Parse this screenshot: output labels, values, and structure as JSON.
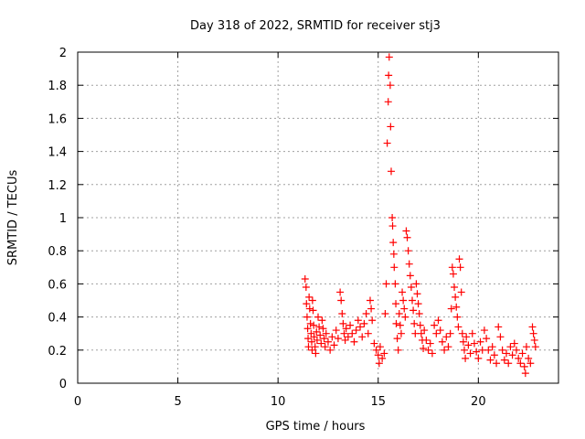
{
  "chart_data": {
    "type": "scatter",
    "title": "Day 318 of 2022, SRMTID for receiver stj3",
    "xlabel": "GPS time / hours",
    "ylabel": "SRMTID / TECUs",
    "xlim": [
      0,
      24
    ],
    "ylim": [
      0,
      2
    ],
    "xticks": [
      0,
      5,
      10,
      15,
      20
    ],
    "yticks": [
      0,
      0.2,
      0.4,
      0.6,
      0.8,
      1,
      1.2,
      1.4,
      1.6,
      1.8,
      2
    ],
    "ytick_labels": [
      "0",
      "0.2",
      "0.4",
      "0.6",
      "0.8",
      "1",
      "1.2",
      "1.4",
      "1.6",
      "1.8",
      "2"
    ],
    "grid": true,
    "marker": "plus",
    "series_color": "#ff0000",
    "series": [
      {
        "points": [
          [
            11.35,
            0.63
          ],
          [
            11.4,
            0.58
          ],
          [
            11.42,
            0.48
          ],
          [
            11.45,
            0.4
          ],
          [
            11.48,
            0.33
          ],
          [
            11.5,
            0.27
          ],
          [
            11.52,
            0.22
          ],
          [
            11.55,
            0.52
          ],
          [
            11.58,
            0.45
          ],
          [
            11.62,
            0.36
          ],
          [
            11.65,
            0.3
          ],
          [
            11.68,
            0.25
          ],
          [
            11.7,
            0.2
          ],
          [
            11.72,
            0.5
          ],
          [
            11.75,
            0.44
          ],
          [
            11.78,
            0.35
          ],
          [
            11.8,
            0.28
          ],
          [
            11.85,
            0.22
          ],
          [
            11.88,
            0.18
          ],
          [
            11.92,
            0.31
          ],
          [
            11.95,
            0.26
          ],
          [
            12.0,
            0.4
          ],
          [
            12.05,
            0.34
          ],
          [
            12.1,
            0.29
          ],
          [
            12.15,
            0.24
          ],
          [
            12.2,
            0.38
          ],
          [
            12.25,
            0.33
          ],
          [
            12.3,
            0.27
          ],
          [
            12.35,
            0.22
          ],
          [
            12.4,
            0.3
          ],
          [
            12.5,
            0.25
          ],
          [
            12.6,
            0.2
          ],
          [
            12.7,
            0.28
          ],
          [
            12.8,
            0.23
          ],
          [
            12.9,
            0.32
          ],
          [
            13.0,
            0.27
          ],
          [
            13.1,
            0.55
          ],
          [
            13.15,
            0.5
          ],
          [
            13.2,
            0.42
          ],
          [
            13.25,
            0.36
          ],
          [
            13.3,
            0.3
          ],
          [
            13.35,
            0.26
          ],
          [
            13.4,
            0.33
          ],
          [
            13.5,
            0.28
          ],
          [
            13.6,
            0.35
          ],
          [
            13.7,
            0.3
          ],
          [
            13.8,
            0.25
          ],
          [
            13.9,
            0.32
          ],
          [
            14.0,
            0.38
          ],
          [
            14.1,
            0.34
          ],
          [
            14.2,
            0.28
          ],
          [
            14.3,
            0.36
          ],
          [
            14.4,
            0.42
          ],
          [
            14.5,
            0.3
          ],
          [
            14.6,
            0.5
          ],
          [
            14.65,
            0.45
          ],
          [
            14.7,
            0.38
          ],
          [
            14.8,
            0.24
          ],
          [
            14.9,
            0.2
          ],
          [
            15.0,
            0.17
          ],
          [
            15.05,
            0.12
          ],
          [
            15.1,
            0.22
          ],
          [
            15.2,
            0.15
          ],
          [
            15.3,
            0.18
          ],
          [
            15.35,
            0.42
          ],
          [
            15.4,
            0.6
          ],
          [
            15.45,
            1.45
          ],
          [
            15.5,
            1.7
          ],
          [
            15.52,
            1.86
          ],
          [
            15.55,
            1.97
          ],
          [
            15.6,
            1.8
          ],
          [
            15.62,
            1.55
          ],
          [
            15.65,
            1.28
          ],
          [
            15.7,
            1.0
          ],
          [
            15.72,
            0.95
          ],
          [
            15.75,
            0.85
          ],
          [
            15.78,
            0.78
          ],
          [
            15.8,
            0.7
          ],
          [
            15.85,
            0.6
          ],
          [
            15.88,
            0.48
          ],
          [
            15.9,
            0.36
          ],
          [
            15.95,
            0.27
          ],
          [
            16.0,
            0.2
          ],
          [
            16.05,
            0.42
          ],
          [
            16.1,
            0.35
          ],
          [
            16.15,
            0.3
          ],
          [
            16.2,
            0.55
          ],
          [
            16.25,
            0.5
          ],
          [
            16.3,
            0.45
          ],
          [
            16.35,
            0.4
          ],
          [
            16.4,
            0.92
          ],
          [
            16.45,
            0.88
          ],
          [
            16.5,
            0.8
          ],
          [
            16.55,
            0.72
          ],
          [
            16.6,
            0.65
          ],
          [
            16.65,
            0.58
          ],
          [
            16.7,
            0.5
          ],
          [
            16.75,
            0.44
          ],
          [
            16.8,
            0.36
          ],
          [
            16.85,
            0.3
          ],
          [
            16.9,
            0.6
          ],
          [
            16.95,
            0.54
          ],
          [
            17.0,
            0.48
          ],
          [
            17.05,
            0.42
          ],
          [
            17.1,
            0.35
          ],
          [
            17.15,
            0.3
          ],
          [
            17.2,
            0.26
          ],
          [
            17.25,
            0.21
          ],
          [
            17.3,
            0.32
          ],
          [
            17.4,
            0.26
          ],
          [
            17.5,
            0.2
          ],
          [
            17.6,
            0.24
          ],
          [
            17.7,
            0.18
          ],
          [
            17.8,
            0.35
          ],
          [
            17.9,
            0.3
          ],
          [
            18.0,
            0.38
          ],
          [
            18.1,
            0.32
          ],
          [
            18.2,
            0.25
          ],
          [
            18.3,
            0.2
          ],
          [
            18.4,
            0.28
          ],
          [
            18.5,
            0.22
          ],
          [
            18.6,
            0.3
          ],
          [
            18.65,
            0.45
          ],
          [
            18.7,
            0.7
          ],
          [
            18.75,
            0.66
          ],
          [
            18.8,
            0.58
          ],
          [
            18.85,
            0.52
          ],
          [
            18.9,
            0.46
          ],
          [
            18.95,
            0.4
          ],
          [
            19.0,
            0.34
          ],
          [
            19.05,
            0.75
          ],
          [
            19.1,
            0.7
          ],
          [
            19.15,
            0.55
          ],
          [
            19.2,
            0.3
          ],
          [
            19.25,
            0.25
          ],
          [
            19.3,
            0.2
          ],
          [
            19.35,
            0.15
          ],
          [
            19.4,
            0.28
          ],
          [
            19.5,
            0.23
          ],
          [
            19.6,
            0.18
          ],
          [
            19.7,
            0.3
          ],
          [
            19.8,
            0.24
          ],
          [
            19.9,
            0.19
          ],
          [
            20.0,
            0.15
          ],
          [
            20.1,
            0.25
          ],
          [
            20.2,
            0.2
          ],
          [
            20.3,
            0.32
          ],
          [
            20.4,
            0.27
          ],
          [
            20.5,
            0.2
          ],
          [
            20.6,
            0.14
          ],
          [
            20.7,
            0.22
          ],
          [
            20.8,
            0.17
          ],
          [
            20.9,
            0.12
          ],
          [
            21.0,
            0.34
          ],
          [
            21.1,
            0.28
          ],
          [
            21.2,
            0.2
          ],
          [
            21.3,
            0.14
          ],
          [
            21.4,
            0.18
          ],
          [
            21.5,
            0.12
          ],
          [
            21.6,
            0.22
          ],
          [
            21.7,
            0.17
          ],
          [
            21.8,
            0.24
          ],
          [
            21.9,
            0.2
          ],
          [
            22.0,
            0.15
          ],
          [
            22.1,
            0.12
          ],
          [
            22.2,
            0.18
          ],
          [
            22.3,
            0.1
          ],
          [
            22.35,
            0.06
          ],
          [
            22.4,
            0.22
          ],
          [
            22.5,
            0.15
          ],
          [
            22.6,
            0.12
          ],
          [
            22.7,
            0.34
          ],
          [
            22.75,
            0.3
          ],
          [
            22.8,
            0.26
          ],
          [
            22.85,
            0.22
          ]
        ]
      }
    ]
  }
}
